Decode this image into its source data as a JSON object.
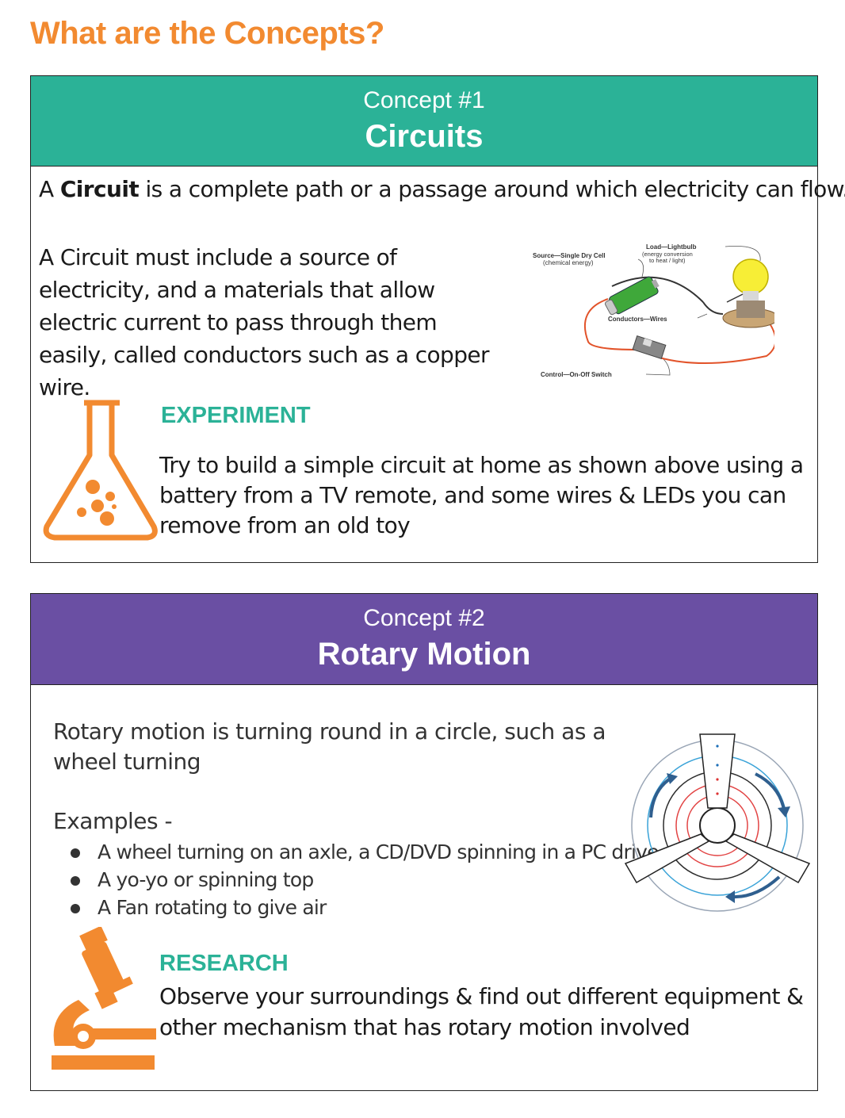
{
  "page": {
    "title": "What are the Concepts?"
  },
  "concept1": {
    "number": "Concept #1",
    "name": "Circuits",
    "definition_prefix": "A ",
    "definition_term": "Circuit",
    "definition_rest": " is a complete path or a passage around which electricity can flow.",
    "body": "A Circuit must include a source of electricity, and a materials that allow electric current to pass through them easily, called conductors such as a copper wire.",
    "diagram": {
      "source_label": "Source—Single Dry Cell",
      "source_sub": "(chemical energy)",
      "load_label": "Load—Lightbulb",
      "load_sub1": "(energy conversion",
      "load_sub2": "to heat / light)",
      "conductors_label": "Conductors—Wires",
      "control_label": "Control—On-Off Switch"
    },
    "experiment": {
      "heading": "EXPERIMENT",
      "text": "Try to build a simple circuit at home as shown above using a battery from a TV remote, and some wires & LEDs you can remove from an old toy"
    }
  },
  "concept2": {
    "number": "Concept #2",
    "name": "Rotary Motion",
    "body": "Rotary motion is turning round in a circle, such as a wheel turning",
    "examples_label": "Examples -",
    "examples": [
      "A wheel turning on an axle, a CD/DVD spinning in a PC drive",
      "A yo-yo  or spinning top",
      "A Fan rotating to give air"
    ],
    "research": {
      "heading": "RESEARCH",
      "text": "Observe your surroundings & find out different equipment & other mechanism that has rotary motion involved"
    }
  },
  "colors": {
    "orange": "#f28a30",
    "teal": "#2bb297",
    "purple": "#6a4fa3"
  },
  "icons": [
    "flask-icon",
    "microscope-icon"
  ]
}
